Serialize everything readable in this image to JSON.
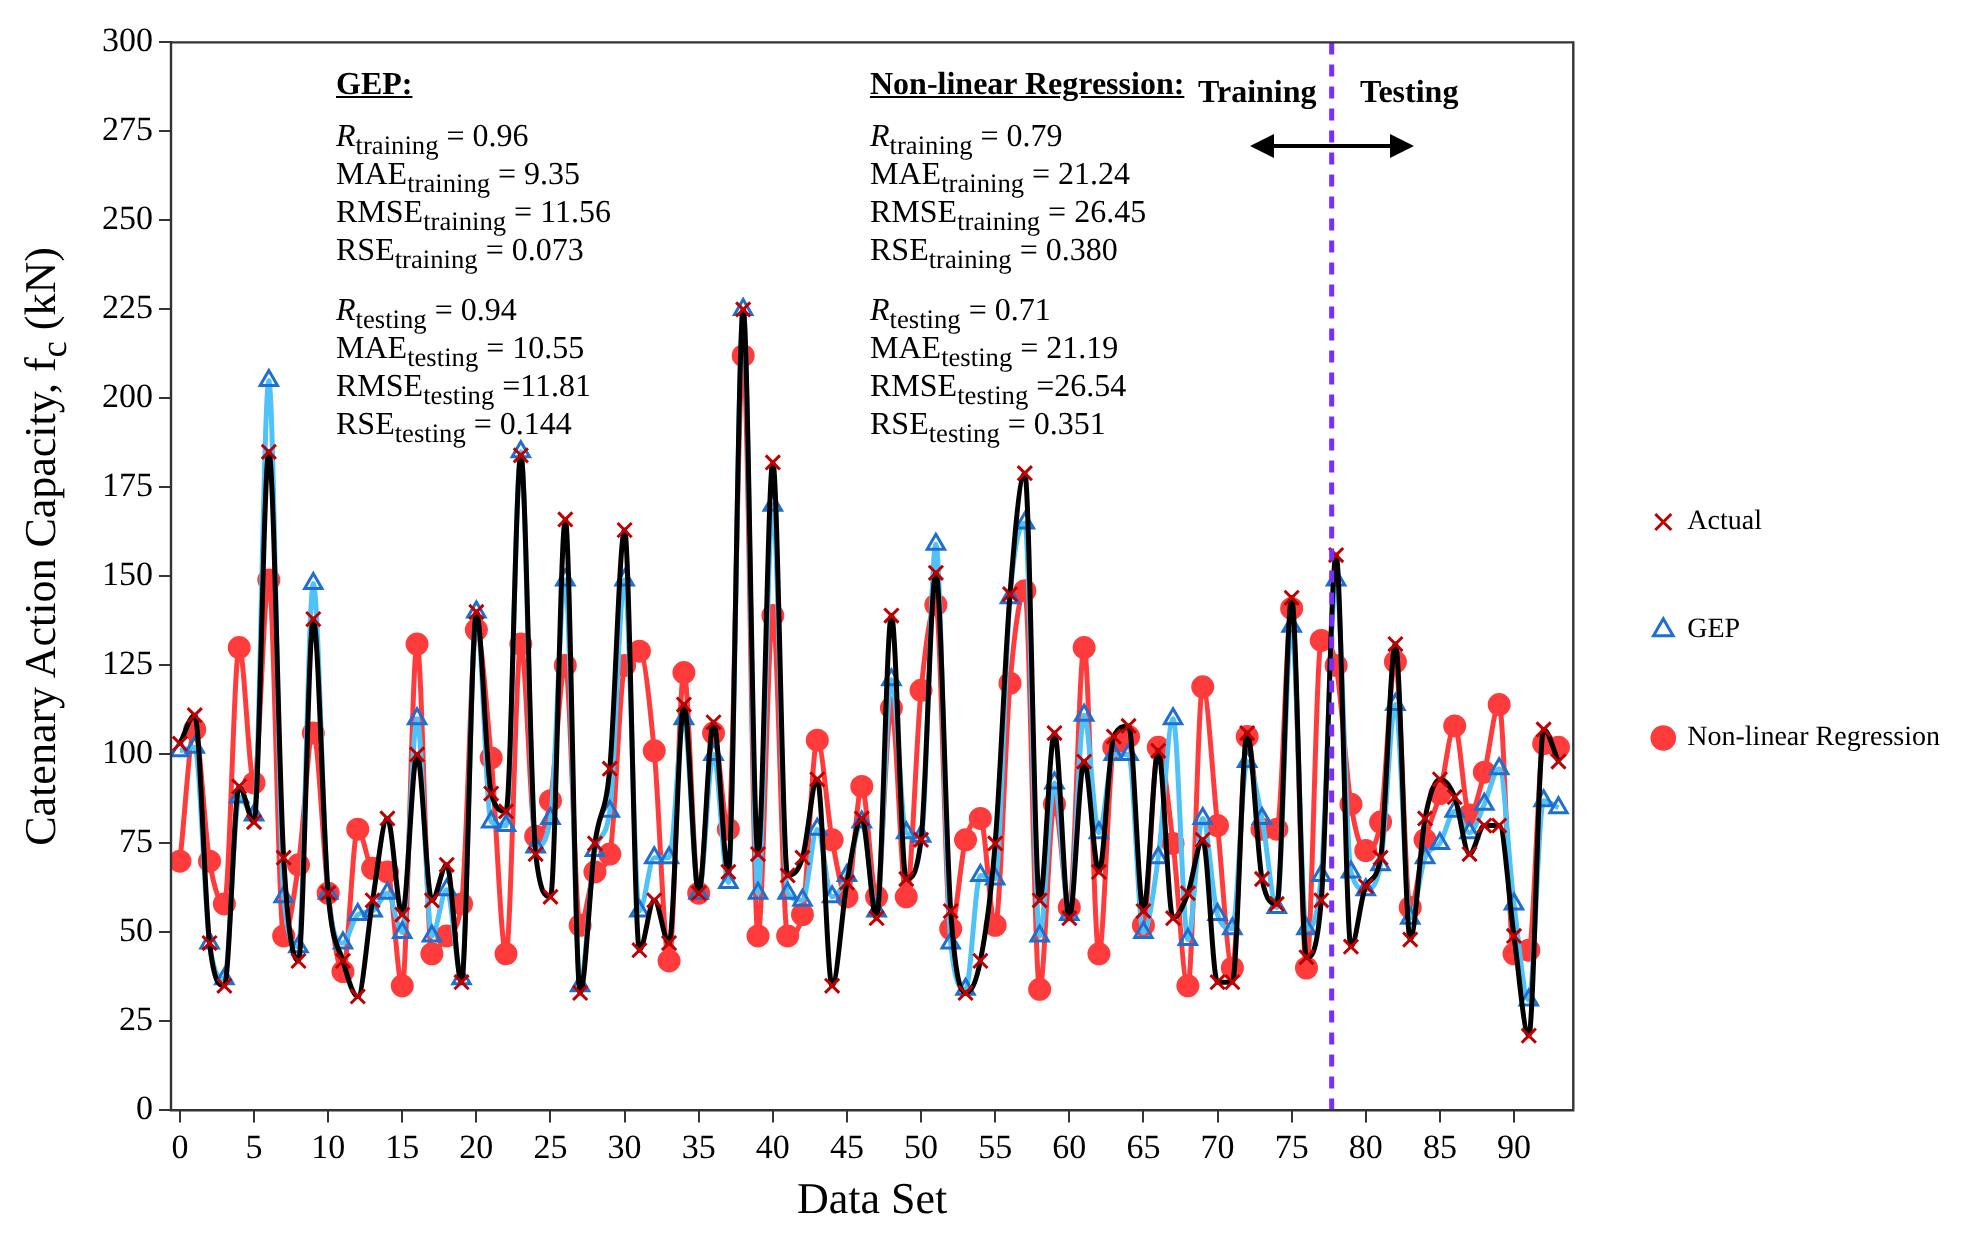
{
  "chart_data": {
    "type": "line",
    "xlabel": "Data Set",
    "ylabel": "Catenary Action Capacity, f$_{c}$ (kN)",
    "x": [
      0,
      1,
      2,
      3,
      4,
      5,
      6,
      7,
      8,
      9,
      10,
      11,
      12,
      13,
      14,
      15,
      16,
      17,
      18,
      19,
      20,
      21,
      22,
      23,
      24,
      25,
      26,
      27,
      28,
      29,
      30,
      31,
      32,
      33,
      34,
      35,
      36,
      37,
      38,
      39,
      40,
      41,
      42,
      43,
      44,
      45,
      46,
      47,
      48,
      49,
      50,
      51,
      52,
      53,
      54,
      55,
      56,
      57,
      58,
      59,
      60,
      61,
      62,
      63,
      64,
      65,
      66,
      67,
      68,
      69,
      70,
      71,
      72,
      73,
      74,
      75,
      76,
      77,
      78,
      79,
      80,
      81,
      82,
      83,
      84,
      85,
      86,
      87,
      88,
      89,
      90,
      91,
      92,
      93
    ],
    "series": [
      {
        "name": "Actual",
        "color": "#000000",
        "marker": "cross",
        "values": [
          103,
          111,
          47,
          35,
          91,
          81,
          185,
          71,
          42,
          138,
          61,
          42,
          32,
          59,
          82,
          55,
          100,
          59,
          69,
          36,
          140,
          89,
          84,
          184,
          72,
          60,
          166,
          33,
          75,
          96,
          163,
          45,
          59,
          47,
          114,
          61,
          109,
          67,
          225,
          72,
          182,
          66,
          71,
          93,
          35,
          64,
          82,
          54,
          139,
          65,
          76,
          151,
          56,
          33,
          42,
          75,
          145,
          179,
          59,
          106,
          54,
          98,
          67,
          105,
          108,
          56,
          101,
          54,
          61,
          76,
          36,
          36,
          106,
          65,
          58,
          144,
          43,
          59,
          156,
          46,
          63,
          71,
          131,
          48,
          82,
          93,
          88,
          72,
          80,
          80,
          49,
          21,
          107,
          98
        ]
      },
      {
        "name": "GEP",
        "color": "#4fc3f7",
        "marker": "triangle",
        "values": [
          101,
          102,
          47,
          37,
          88,
          83,
          205,
          60,
          46,
          148,
          61,
          47,
          55,
          56,
          61,
          50,
          110,
          49,
          62,
          37,
          140,
          81,
          80,
          185,
          74,
          82,
          149,
          35,
          73,
          84,
          149,
          56,
          71,
          71,
          110,
          61,
          100,
          64,
          225,
          61,
          170,
          61,
          59,
          79,
          60,
          66,
          81,
          56,
          121,
          78,
          77,
          159,
          47,
          34,
          66,
          65,
          144,
          165,
          49,
          92,
          55,
          111,
          78,
          100,
          100,
          50,
          71,
          110,
          48,
          82,
          55,
          51,
          98,
          82,
          57,
          136,
          51,
          66,
          149,
          67,
          62,
          69,
          114,
          54,
          71,
          75,
          84,
          78,
          86,
          96,
          58,
          31,
          87,
          85
        ]
      },
      {
        "name": "Non-linear Regression",
        "color": "#ff3b3b",
        "marker": "circle",
        "values": [
          70,
          107,
          70,
          58,
          130,
          92,
          149,
          49,
          69,
          106,
          61,
          39,
          79,
          68,
          67,
          35,
          131,
          44,
          49,
          58,
          135,
          99,
          44,
          131,
          77,
          87,
          125,
          52,
          67,
          72,
          125,
          129,
          101,
          42,
          123,
          61,
          106,
          79,
          212,
          49,
          139,
          49,
          55,
          104,
          76,
          60,
          91,
          60,
          113,
          60,
          118,
          142,
          51,
          76,
          82,
          52,
          120,
          146,
          34,
          86,
          57,
          130,
          44,
          102,
          105,
          52,
          102,
          75,
          35,
          119,
          80,
          40,
          105,
          79,
          79,
          141,
          40,
          132,
          125,
          86,
          73,
          81,
          126,
          57,
          76,
          89,
          108,
          83,
          95,
          114,
          44,
          45,
          103,
          102
        ]
      }
    ],
    "xlim": [
      -0.6,
      94
    ],
    "xticks": [
      0,
      5,
      10,
      15,
      20,
      25,
      30,
      35,
      40,
      45,
      50,
      55,
      60,
      65,
      70,
      75,
      80,
      85,
      90
    ],
    "ylim": [
      0,
      300
    ],
    "yticks": [
      0,
      25,
      50,
      75,
      100,
      125,
      150,
      175,
      200,
      225,
      250,
      275,
      300
    ],
    "grid": false,
    "legend": "right",
    "line_style": "solid",
    "ref_lines": [
      {
        "axis": "x",
        "value": 77.7,
        "color": "#7b2cff",
        "line_style": "dashed"
      }
    ],
    "annotations": [
      "GEP:",
      "R$_{training}$ = 0.96",
      "MAE$_{training}$ = 9.35",
      "RMSE$_{training}$ = 11.56",
      "RSE$_{training}$ = 0.073",
      "R$_{testing}$ = 0.94",
      "MAE$_{testing}$ = 10.55",
      "RMSE$_{testing}$ =11.81",
      "RSE$_{testing}$ = 0.144",
      "Non-linear Regression:",
      "R$_{training}$ = 0.79",
      "MAE$_{training}$ = 21.24",
      "RMSE$_{training}$ = 26.45",
      "RSE$_{training}$ = 0.380",
      "R$_{testing}$ = 0.71",
      "MAE$_{testing}$ = 21.19",
      "RMSE$_{testing}$ =26.54",
      "RSE$_{testing}$ = 0.351",
      "Training",
      "Testing"
    ]
  }
}
